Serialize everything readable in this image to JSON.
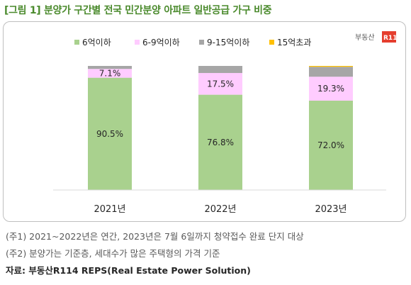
{
  "title": "[그림 1] 분양가 구간별 전국 민간분양 아파트 일반공급 가구 비중",
  "logo": {
    "text": "부동산",
    "mark": "R114"
  },
  "chart_data": {
    "type": "bar",
    "stacked": true,
    "percent_stacked": true,
    "categories": [
      "2021년",
      "2022년",
      "2023년"
    ],
    "series": [
      {
        "name": "6억이하",
        "color": "#a9d18e",
        "values": [
          90.5,
          76.8,
          72.0
        ],
        "labels": [
          "90.5%",
          "76.8%",
          "72.0%"
        ]
      },
      {
        "name": "6-9억이하",
        "color": "#ffccff",
        "values": [
          7.1,
          17.5,
          19.3
        ],
        "labels": [
          "7.1%",
          "17.5%",
          "19.3%"
        ]
      },
      {
        "name": "9-15억이하",
        "color": "#a6a6a6",
        "values": [
          2.4,
          5.7,
          8.0
        ],
        "labels": [
          "",
          "",
          ""
        ]
      },
      {
        "name": "15억초과",
        "color": "#ffc000",
        "values": [
          0.0,
          0.0,
          0.7
        ],
        "labels": [
          "",
          "",
          ""
        ]
      }
    ],
    "ylim": [
      0,
      100
    ],
    "legend": "top",
    "grid": false
  },
  "notes": [
    "(주1) 2021~2022년은 연간, 2023년은 7월 6일까지 청약접수 완료 단지 대상",
    "(주2) 분양가는 기준층, 세대수가 많은 주택형의 가격 기준"
  ],
  "source": "자료: 부동산R114 REPS(Real Estate Power Solution)"
}
